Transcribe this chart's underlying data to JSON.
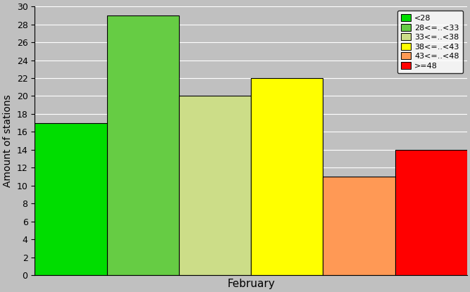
{
  "bars": [
    {
      "label": "<28",
      "value": 17,
      "color": "#00DD00"
    },
    {
      "label": "28<=..<33",
      "value": 29,
      "color": "#66CC44"
    },
    {
      "label": "33<=..<38",
      "value": 20,
      "color": "#CCDD88"
    },
    {
      "label": "38<=..<43",
      "value": 22,
      "color": "#FFFF00"
    },
    {
      "label": "43<=..<48",
      "value": 11,
      "color": "#FF9955"
    },
    {
      "label": ">=48",
      "value": 14,
      "color": "#FF0000"
    }
  ],
  "ylabel": "Amount of stations",
  "xlabel": "February",
  "ylim": [
    0,
    30
  ],
  "yticks": [
    0,
    2,
    4,
    6,
    8,
    10,
    12,
    14,
    16,
    18,
    20,
    22,
    24,
    26,
    28,
    30
  ],
  "background_color": "#C0C0C0",
  "plot_bg_color": "#C0C0C0",
  "legend_fontsize": 8,
  "ylabel_fontsize": 10,
  "xlabel_fontsize": 11,
  "tick_fontsize": 9
}
